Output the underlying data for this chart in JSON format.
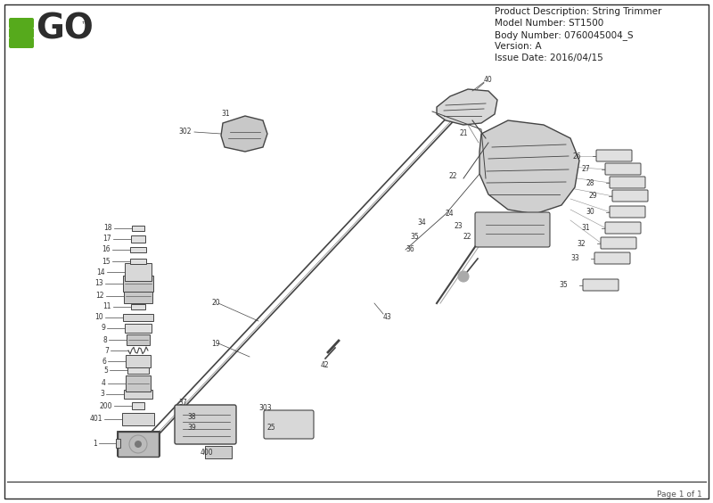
{
  "bg_color": "#ffffff",
  "border_color": "#2a2a2a",
  "logo_green": "#56aa1c",
  "logo_dark": "#2d2d2d",
  "header_info": [
    "Product Description: String Trimmer",
    "Model Number: ST1500",
    "Body Number: 0760045004_S",
    "Version: A",
    "Issue Date: 2016/04/15"
  ],
  "footer_text": "Page 1 of 1",
  "shaft_color": "#444444",
  "part_label_color": "#333333",
  "part_label_fontsize": 5.5
}
